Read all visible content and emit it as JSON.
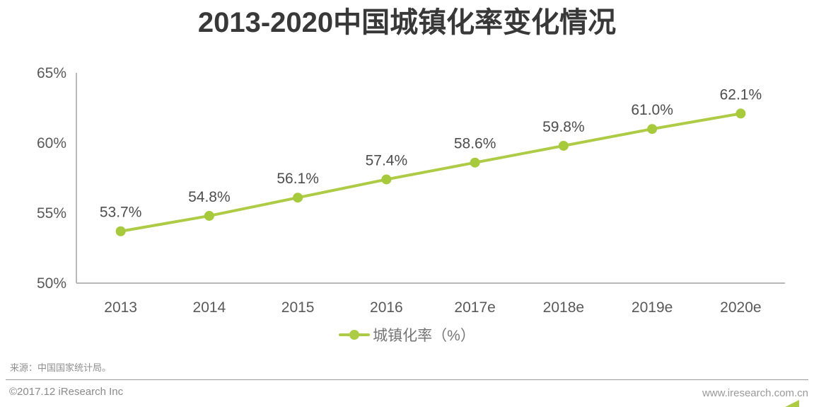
{
  "page": {
    "title": "2013-2020中国城镇化率变化情况"
  },
  "chart_data": {
    "type": "line",
    "title": "2013-2020中国城镇化率变化情况",
    "categories": [
      "2013",
      "2014",
      "2015",
      "2016",
      "2017e",
      "2018e",
      "2019e",
      "2020e"
    ],
    "series": [
      {
        "name": "城镇化率（%）",
        "values": [
          53.7,
          54.8,
          56.1,
          57.4,
          58.6,
          59.8,
          61.0,
          62.1
        ]
      }
    ],
    "point_labels": [
      "53.7%",
      "54.8%",
      "56.1%",
      "57.4%",
      "58.6%",
      "59.8%",
      "61.0%",
      "62.1%"
    ],
    "xlabel": "",
    "ylabel": "",
    "ylim": [
      50,
      65
    ],
    "yticks": [
      50,
      55,
      60,
      65
    ],
    "ytick_labels": [
      "50%",
      "55%",
      "60%",
      "65%"
    ],
    "grid": false,
    "legend_position": "bottom"
  },
  "legend": {
    "label": "城镇化率（%）"
  },
  "footer": {
    "source": "来源：中国国家统计局。",
    "copyright": "©2017.12 iResearch Inc",
    "website": "www.iresearch.com.cn"
  },
  "colors": {
    "accent_green": "#aecb46",
    "marker_green": "#a7c93c",
    "title_text": "#383838",
    "label_text": "#4d4d4d",
    "tick_text": "#595959",
    "axis_line": "#b8b8b8"
  }
}
